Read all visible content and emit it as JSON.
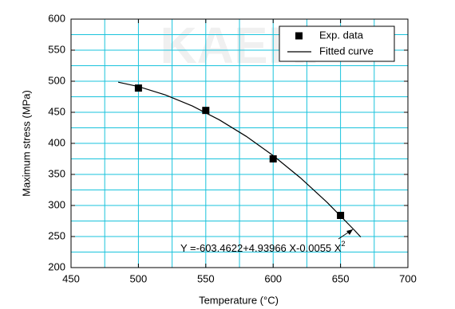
{
  "chart_data": {
    "type": "scatter",
    "watermark": "KAERI",
    "x_label": "Temperature (°C)",
    "y_label": "Maximum stress (MPa)",
    "xlim": [
      450,
      700
    ],
    "xticks": [
      450,
      500,
      550,
      600,
      650,
      700
    ],
    "ylim": [
      200,
      600
    ],
    "yticks": [
      200,
      250,
      300,
      350,
      400,
      450,
      500,
      550,
      600
    ],
    "grid": true,
    "legend": "upper right",
    "series": [
      {
        "name": "Exp. data",
        "type": "scatter",
        "color": "#000000",
        "x": [
          500,
          550,
          600,
          650
        ],
        "values": [
          489,
          453,
          375,
          284
        ]
      },
      {
        "name": "Fitted curve",
        "type": "line",
        "color": "#000000",
        "x": [
          485,
          500,
          520,
          540,
          560,
          580,
          600,
          620,
          640,
          660,
          665
        ],
        "values": [
          498.5,
          491.4,
          478.0,
          460.2,
          437.9,
          411.3,
          380.3,
          344.9,
          305.1,
          260.9,
          249.2
        ]
      }
    ],
    "annotation": {
      "text": "Y =-603.4622+4.93966 X-0.0055 X",
      "superscript": "2"
    }
  }
}
